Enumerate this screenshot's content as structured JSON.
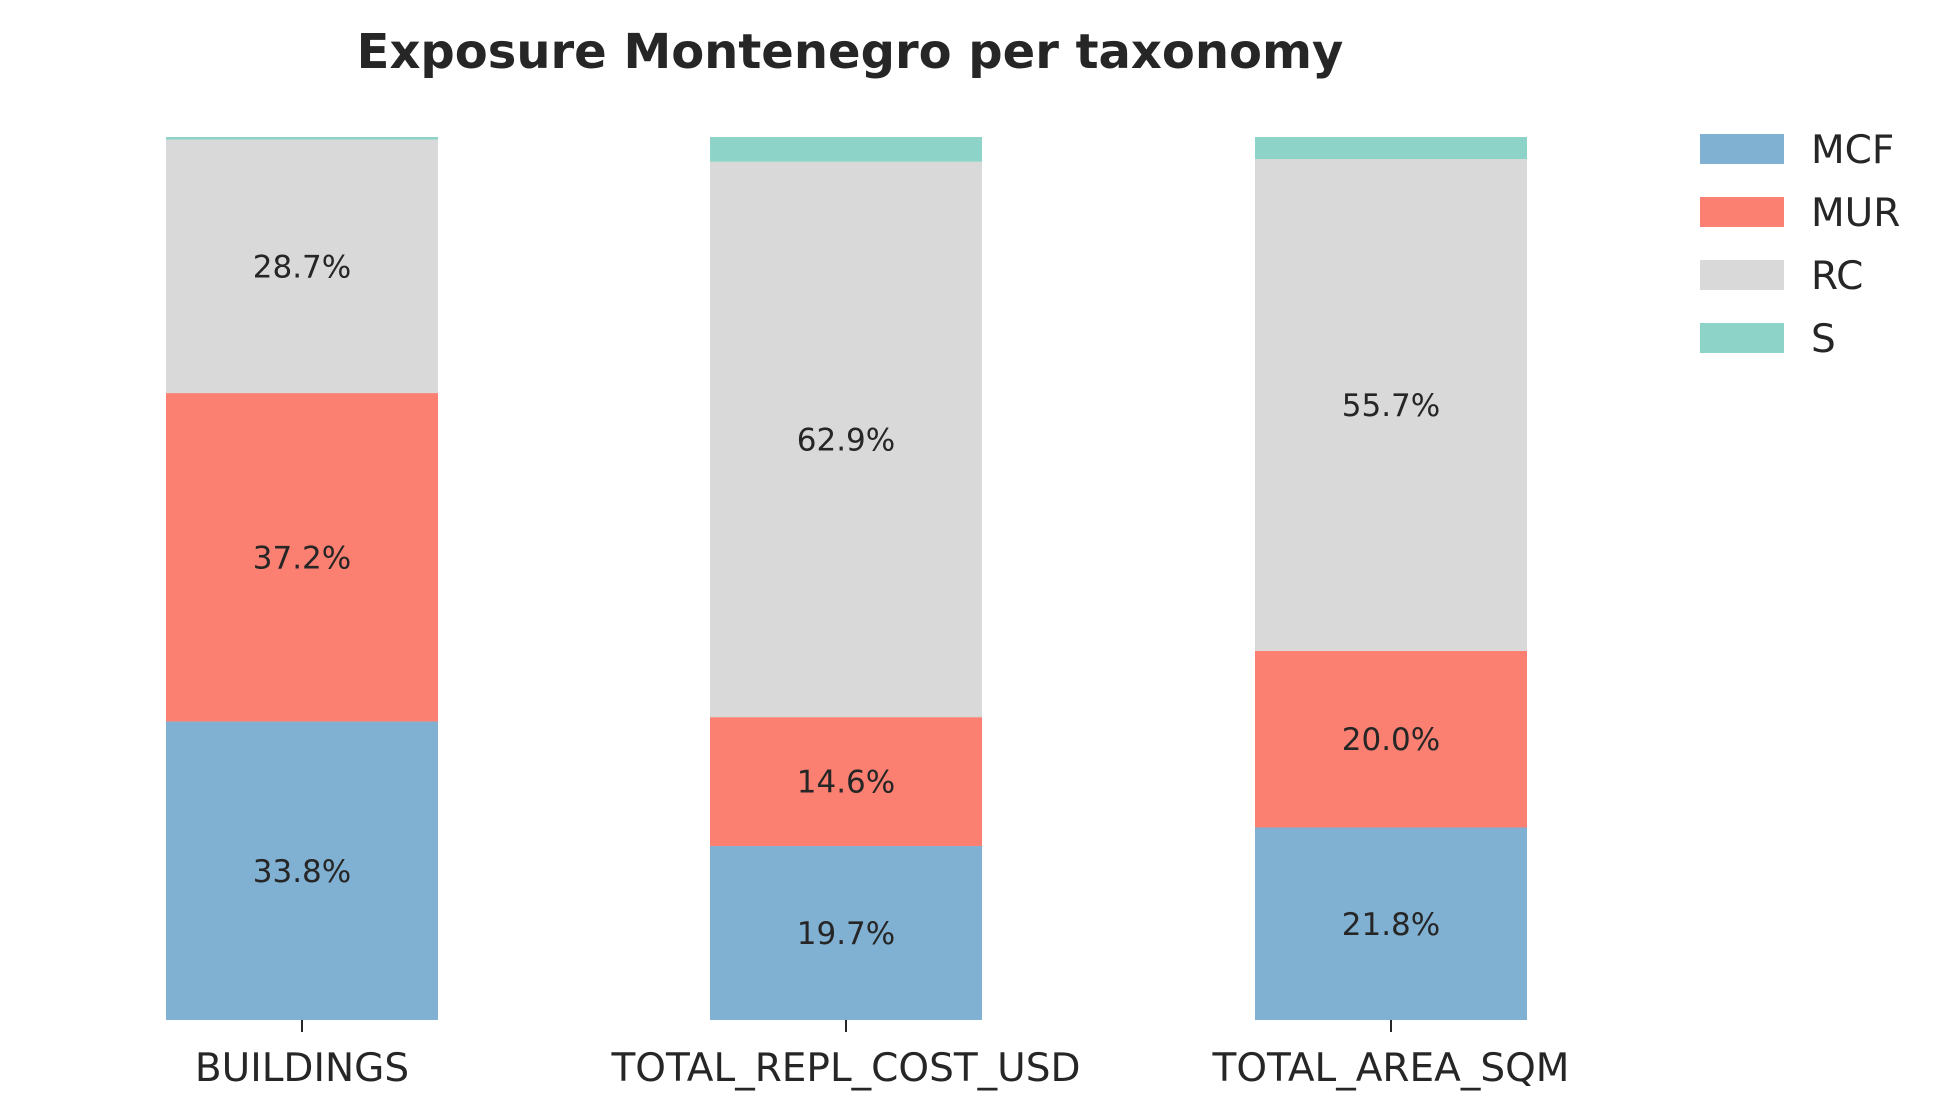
{
  "chart_data": {
    "type": "bar",
    "stacked": true,
    "normalized": true,
    "title": "Exposure Montenegro per taxonomy",
    "xlabel": "",
    "ylabel": "",
    "ylim": [
      0,
      100
    ],
    "grid": false,
    "legend_position": "top-right",
    "categories": [
      "BUILDINGS",
      "TOTAL_REPL_COST_USD",
      "TOTAL_AREA_SQM"
    ],
    "series": [
      {
        "name": "MCF",
        "color": "#80b1d3",
        "values": [
          33.8,
          19.7,
          21.8
        ],
        "labels": [
          "33.8%",
          "19.7%",
          "21.8%"
        ]
      },
      {
        "name": "MUR",
        "color": "#fb8072",
        "values": [
          37.2,
          14.6,
          20.0
        ],
        "labels": [
          "37.2%",
          "14.6%",
          "20.0%"
        ]
      },
      {
        "name": "RC",
        "color": "#d9d9d9",
        "values": [
          28.7,
          62.9,
          55.7
        ],
        "labels": [
          "28.7%",
          "62.9%",
          "55.7%"
        ]
      },
      {
        "name": "S",
        "color": "#8dd3c7",
        "values": [
          0.3,
          2.8,
          2.5
        ],
        "labels": [
          "",
          "",
          ""
        ]
      }
    ]
  }
}
